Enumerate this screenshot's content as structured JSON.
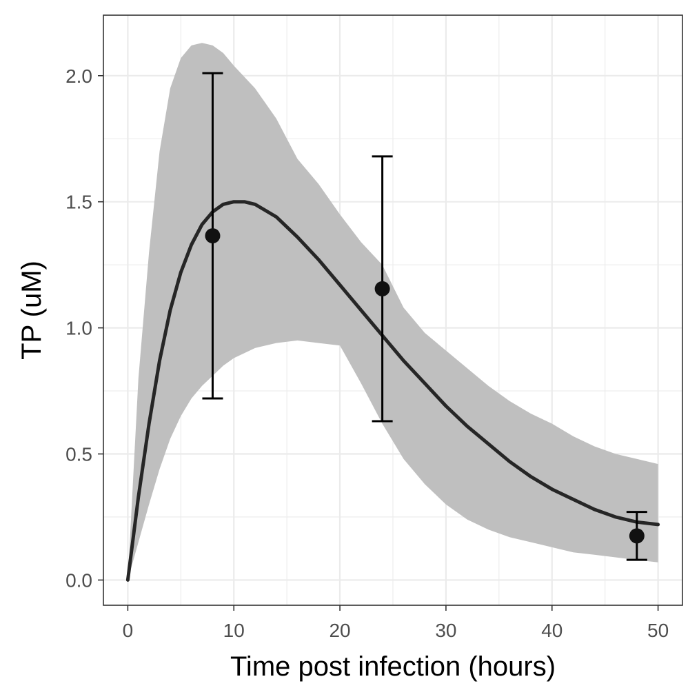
{
  "chart_data": {
    "type": "line",
    "title": "",
    "xlabel": "Time post infection (hours)",
    "ylabel": "TP (uM)",
    "xlim": [
      -2.3,
      52.3
    ],
    "ylim": [
      -0.1,
      2.24
    ],
    "x_ticks": [
      0,
      10,
      20,
      30,
      40,
      50
    ],
    "y_ticks": [
      0.0,
      0.5,
      1.0,
      1.5,
      2.0
    ],
    "x_tick_labels": [
      "0",
      "10",
      "20",
      "30",
      "40",
      "50"
    ],
    "y_tick_labels": [
      "0.0",
      "0.5",
      "1.0",
      "1.5",
      "2.0"
    ],
    "grid": true,
    "legend": "none",
    "colors": {
      "fit_line": "#262626",
      "ribbon": "#bfbfbf",
      "points": "#111111",
      "panel_border": "#333333"
    },
    "fit_line": {
      "x": [
        0,
        1,
        2,
        3,
        4,
        5,
        6,
        7,
        8,
        9,
        10,
        11,
        12,
        14,
        16,
        18,
        20,
        22,
        24,
        26,
        28,
        30,
        32,
        34,
        36,
        38,
        40,
        42,
        44,
        46,
        48,
        50
      ],
      "y": [
        0.0,
        0.33,
        0.62,
        0.87,
        1.07,
        1.22,
        1.33,
        1.41,
        1.46,
        1.49,
        1.5,
        1.5,
        1.49,
        1.44,
        1.36,
        1.27,
        1.17,
        1.07,
        0.97,
        0.87,
        0.78,
        0.69,
        0.61,
        0.54,
        0.47,
        0.41,
        0.36,
        0.32,
        0.28,
        0.25,
        0.23,
        0.22
      ]
    },
    "ribbon": {
      "x": [
        0,
        1,
        2,
        3,
        4,
        5,
        6,
        7,
        8,
        9,
        10,
        12,
        14,
        16,
        18,
        20,
        22,
        24,
        26,
        28,
        30,
        32,
        34,
        36,
        38,
        40,
        42,
        44,
        46,
        48,
        50
      ],
      "lower": [
        0.0,
        0.15,
        0.3,
        0.44,
        0.56,
        0.65,
        0.72,
        0.77,
        0.81,
        0.85,
        0.88,
        0.92,
        0.94,
        0.95,
        0.94,
        0.93,
        0.78,
        0.62,
        0.48,
        0.38,
        0.3,
        0.24,
        0.2,
        0.17,
        0.15,
        0.13,
        0.11,
        0.1,
        0.09,
        0.08,
        0.07
      ],
      "upper": [
        0.0,
        0.8,
        1.3,
        1.7,
        1.95,
        2.07,
        2.12,
        2.13,
        2.12,
        2.09,
        2.04,
        1.95,
        1.83,
        1.67,
        1.57,
        1.45,
        1.34,
        1.25,
        1.08,
        0.98,
        0.91,
        0.84,
        0.77,
        0.71,
        0.66,
        0.62,
        0.57,
        0.53,
        0.5,
        0.48,
        0.46
      ]
    },
    "points": {
      "x": [
        8,
        24,
        48
      ],
      "y": [
        1.365,
        1.155,
        0.175
      ],
      "ymin": [
        0.72,
        0.63,
        0.08
      ],
      "ymax": [
        2.01,
        1.68,
        0.27
      ]
    }
  }
}
